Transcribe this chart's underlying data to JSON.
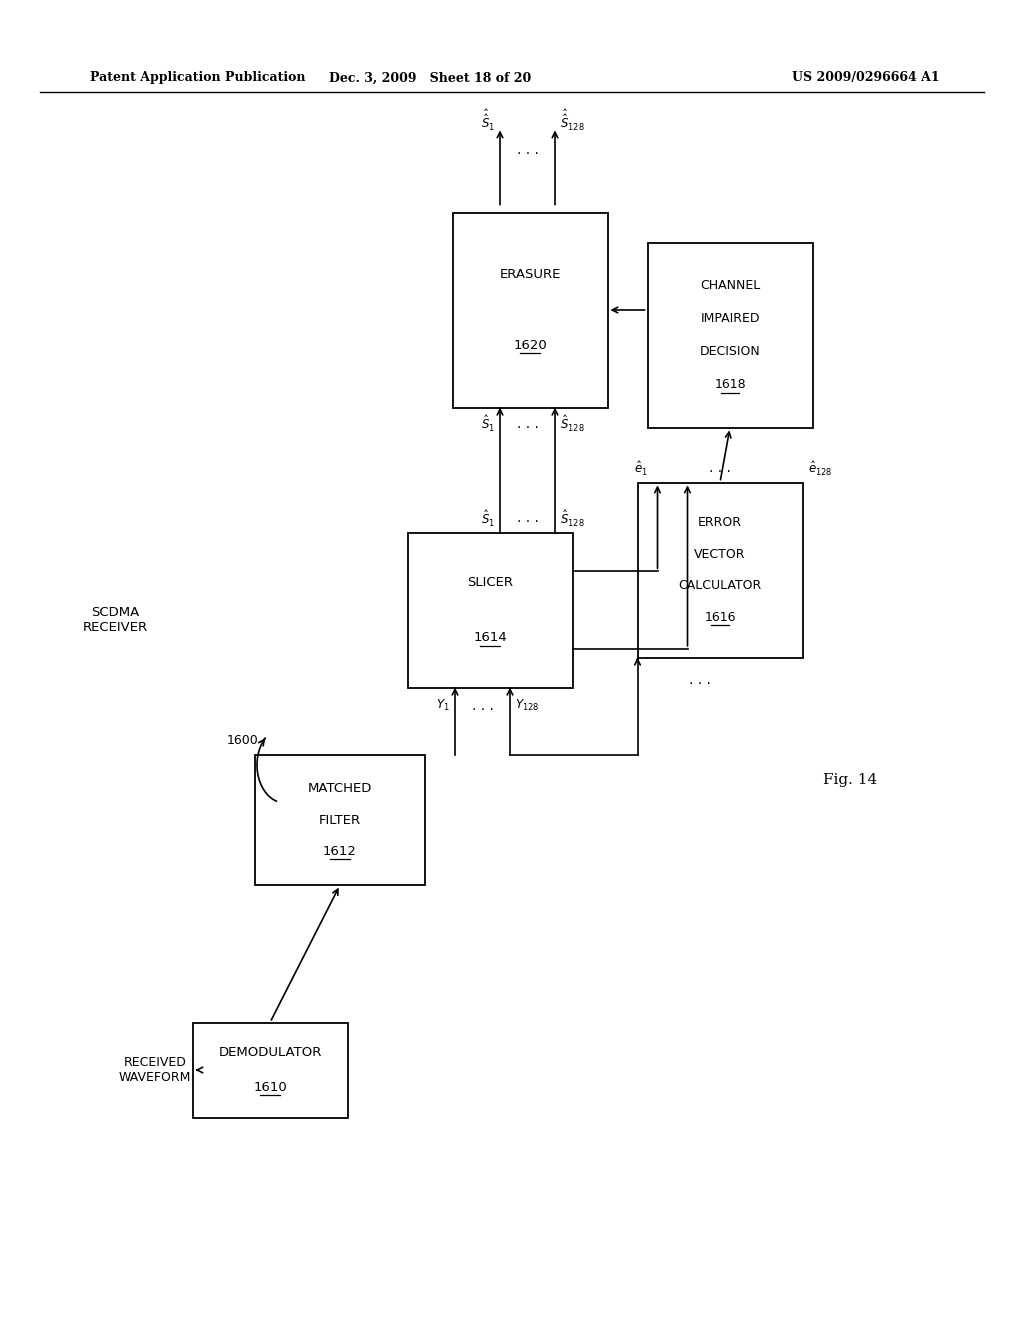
{
  "background_color": "#ffffff",
  "header_left": "Patent Application Publication",
  "header_middle": "Dec. 3, 2009   Sheet 18 of 20",
  "header_right": "US 2009/0296664 A1",
  "fig_label": "Fig. 14"
}
